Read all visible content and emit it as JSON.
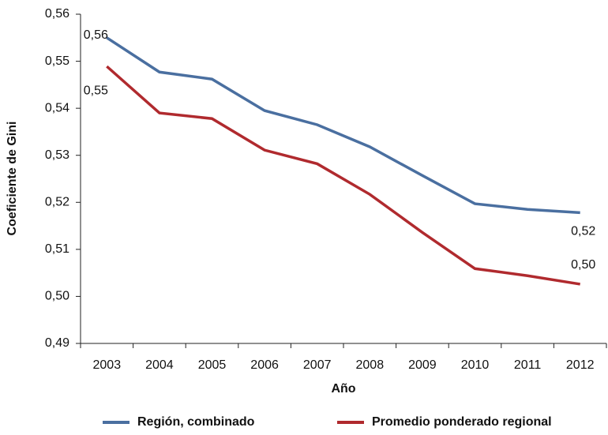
{
  "chart_data": {
    "type": "line",
    "x_label": "Año",
    "y_label": "Coeficiente de Gini",
    "categories": [
      "2003",
      "2004",
      "2005",
      "2006",
      "2007",
      "2008",
      "2009",
      "2010",
      "2011",
      "2012"
    ],
    "series": [
      {
        "name": "Región, combinado",
        "color": "#4a6fa0",
        "values": [
          0.555,
          0.5477,
          0.5462,
          0.5395,
          0.5365,
          0.5318,
          0.5257,
          0.5197,
          0.5185,
          0.5178
        ],
        "value_labels": [
          "0,56",
          null,
          null,
          null,
          null,
          null,
          null,
          null,
          null,
          "0,52"
        ]
      },
      {
        "name": "Promedio ponderado regional",
        "color": "#b02a2e",
        "values": [
          0.5489,
          0.539,
          0.5378,
          0.5311,
          0.5282,
          0.5217,
          0.5136,
          0.5059,
          0.5044,
          0.5026
        ],
        "value_labels": [
          "0,55",
          null,
          null,
          null,
          null,
          null,
          null,
          null,
          null,
          "0,50"
        ]
      }
    ],
    "ylim": [
      0.49,
      0.56
    ],
    "yticks": [
      {
        "value": 0.49,
        "label": "0,49"
      },
      {
        "value": 0.5,
        "label": "0,50"
      },
      {
        "value": 0.51,
        "label": "0,51"
      },
      {
        "value": 0.52,
        "label": "0,52"
      },
      {
        "value": 0.53,
        "label": "0,53"
      },
      {
        "value": 0.54,
        "label": "0,54"
      },
      {
        "value": 0.55,
        "label": "0,55"
      },
      {
        "value": 0.56,
        "label": "0,56"
      }
    ],
    "grid": false,
    "legend": "bottom"
  }
}
